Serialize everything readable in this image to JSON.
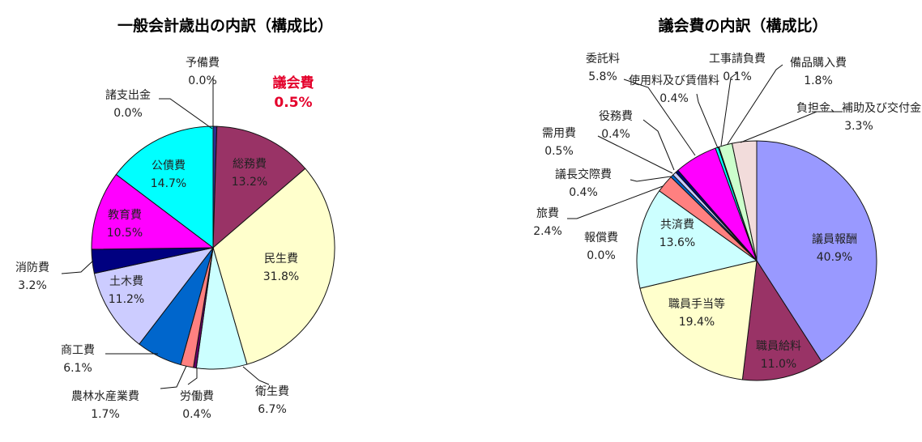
{
  "chart_data": [
    {
      "type": "pie",
      "title": "一般会計歳出の内訳（構成比）",
      "slices": [
        {
          "name": "議会費",
          "value": 0.5,
          "label": "0.5%",
          "color": "#2e2e8f",
          "highlight": true
        },
        {
          "name": "総務費",
          "value": 13.2,
          "label": "13.2%",
          "color": "#993366"
        },
        {
          "name": "民生費",
          "value": 31.8,
          "label": "31.8%",
          "color": "#ffffcc"
        },
        {
          "name": "衛生費",
          "value": 6.7,
          "label": "6.7%",
          "color": "#ccffff"
        },
        {
          "name": "労働費",
          "value": 0.4,
          "label": "0.4%",
          "color": "#660066"
        },
        {
          "name": "農林水産業費",
          "value": 1.7,
          "label": "1.7%",
          "color": "#ff8080"
        },
        {
          "name": "商工費",
          "value": 6.1,
          "label": "6.1%",
          "color": "#0066cc"
        },
        {
          "name": "土木費",
          "value": 11.2,
          "label": "11.2%",
          "color": "#ccccff"
        },
        {
          "name": "消防費",
          "value": 3.2,
          "label": "3.2%",
          "color": "#000080"
        },
        {
          "name": "教育費",
          "value": 10.5,
          "label": "10.5%",
          "color": "#ff00ff"
        },
        {
          "name": "公債費",
          "value": 14.7,
          "label": "14.7%",
          "color": "#00ffff"
        },
        {
          "name": "諸支出金",
          "value": 0.0,
          "label": "0.0%",
          "color": "#800000"
        },
        {
          "name": "予備費",
          "value": 0.0,
          "label": "0.0%",
          "color": "#008080"
        }
      ]
    },
    {
      "type": "pie",
      "title": "議会費の内訳（構成比）",
      "slices": [
        {
          "name": "議員報酬",
          "value": 40.9,
          "label": "40.9%",
          "color": "#9999ff"
        },
        {
          "name": "職員給料",
          "value": 11.0,
          "label": "11.0%",
          "color": "#993366"
        },
        {
          "name": "職員手当等",
          "value": 19.4,
          "label": "19.4%",
          "color": "#ffffcc"
        },
        {
          "name": "共済費",
          "value": 13.6,
          "label": "13.6%",
          "color": "#ccffff"
        },
        {
          "name": "報償費",
          "value": 0.0,
          "label": "0.0%",
          "color": "#660066"
        },
        {
          "name": "旅費",
          "value": 2.4,
          "label": "2.4%",
          "color": "#ff8080"
        },
        {
          "name": "議長交際費",
          "value": 0.4,
          "label": "0.4%",
          "color": "#0066cc"
        },
        {
          "name": "需用費",
          "value": 0.5,
          "label": "0.5%",
          "color": "#ccccff"
        },
        {
          "name": "役務費",
          "value": 0.4,
          "label": "0.4%",
          "color": "#000080"
        },
        {
          "name": "委託料",
          "value": 5.8,
          "label": "5.8%",
          "color": "#ff00ff"
        },
        {
          "name": "使用料及び賃借料",
          "value": 0.4,
          "label": "0.4%",
          "color": "#00ffff"
        },
        {
          "name": "工事請負費",
          "value": 0.1,
          "label": "0.1%",
          "color": "#008080"
        },
        {
          "name": "備品購入費",
          "value": 1.8,
          "label": "1.8%",
          "color": "#ccffcc"
        },
        {
          "name": "負担金、補助及び交付金",
          "value": 3.3,
          "label": "3.3%",
          "color": "#f2dcdb"
        }
      ]
    }
  ]
}
